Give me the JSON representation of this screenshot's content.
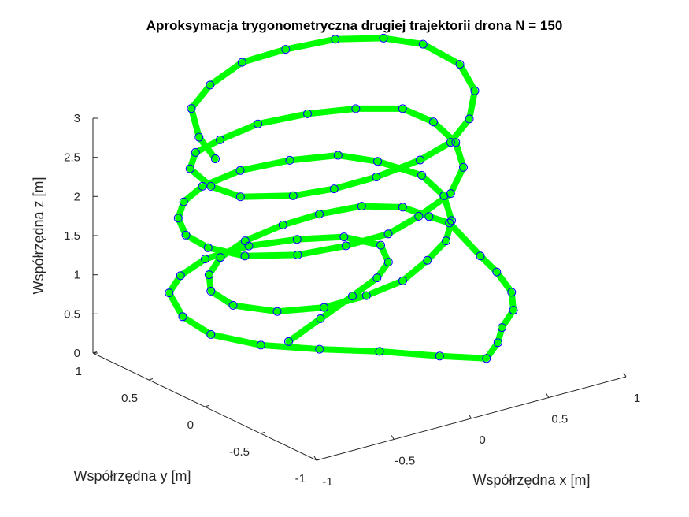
{
  "chart_data": {
    "type": "line",
    "title": "Aproksymacja trygonometryczna drugiej trajektorii drona N = 150",
    "xlabel": "Współrzędna x [m]",
    "ylabel": "Współrzędna y [m]",
    "zlabel": "Współrzędna z [m]",
    "x_ticks": [
      "-1",
      "-0.5",
      "0",
      "0.5",
      "1"
    ],
    "y_ticks": [
      "-1",
      "-0.5",
      "0",
      "0.5",
      "1"
    ],
    "z_ticks": [
      "0",
      "0.5",
      "1",
      "1.5",
      "2",
      "2.5",
      "3"
    ],
    "xlim": [
      -1,
      1
    ],
    "ylim": [
      -1,
      1
    ],
    "zlim": [
      0,
      3
    ],
    "grid": false,
    "view": "3d",
    "series": [
      {
        "style": "thick line with circle markers",
        "line_color": "#00ff00",
        "marker_color": "#0000ff",
        "points": [
          [
            -0.6,
            -0.25,
            0.5
          ],
          [
            -0.3,
            -0.15,
            0.55
          ],
          [
            0.0,
            -0.05,
            0.6
          ],
          [
            0.25,
            0.05,
            0.62
          ],
          [
            0.45,
            0.2,
            0.6
          ],
          [
            0.6,
            0.45,
            0.55
          ],
          [
            0.55,
            0.7,
            0.5
          ],
          [
            0.35,
            0.85,
            0.47
          ],
          [
            0.1,
            0.95,
            0.45
          ],
          [
            -0.2,
            0.95,
            0.45
          ],
          [
            -0.45,
            0.85,
            0.45
          ],
          [
            -0.65,
            0.7,
            0.45
          ],
          [
            -0.8,
            0.4,
            0.45
          ],
          [
            -0.85,
            0.1,
            0.47
          ],
          [
            -0.75,
            -0.2,
            0.5
          ],
          [
            -0.55,
            -0.45,
            0.52
          ],
          [
            -0.3,
            -0.65,
            0.5
          ],
          [
            -0.05,
            -0.85,
            0.45
          ],
          [
            0.15,
            -1.0,
            0.42
          ],
          [
            0.35,
            -0.85,
            0.4
          ],
          [
            0.5,
            -0.7,
            0.4
          ],
          [
            0.7,
            -0.55,
            0.4
          ],
          [
            0.85,
            -0.35,
            0.4
          ],
          [
            0.95,
            -0.1,
            0.42
          ],
          [
            1.0,
            0.1,
            0.45
          ],
          [
            0.95,
            0.3,
            0.75
          ],
          [
            0.85,
            0.35,
            0.85
          ],
          [
            0.75,
            0.45,
            0.95
          ],
          [
            0.55,
            0.55,
            1.0
          ],
          [
            0.3,
            0.6,
            1.0
          ],
          [
            0.05,
            0.6,
            1.0
          ],
          [
            -0.25,
            0.55,
            1.0
          ],
          [
            -0.5,
            0.45,
            1.0
          ],
          [
            -0.7,
            0.3,
            1.0
          ],
          [
            -0.85,
            0.1,
            1.02
          ],
          [
            -0.9,
            -0.15,
            1.05
          ],
          [
            -0.8,
            -0.4,
            1.1
          ],
          [
            -0.6,
            -0.55,
            1.15
          ],
          [
            -0.35,
            -0.6,
            1.2
          ],
          [
            -0.1,
            -0.6,
            1.25
          ],
          [
            0.15,
            -0.5,
            1.3
          ],
          [
            0.4,
            -0.35,
            1.3
          ],
          [
            0.6,
            -0.15,
            1.3
          ],
          [
            0.75,
            0.1,
            1.35
          ],
          [
            0.8,
            0.35,
            1.4
          ],
          [
            0.7,
            0.6,
            1.45
          ],
          [
            0.55,
            0.75,
            1.5
          ],
          [
            0.3,
            0.85,
            1.5
          ],
          [
            0.0,
            0.9,
            1.5
          ],
          [
            -0.3,
            0.85,
            1.5
          ],
          [
            -0.55,
            0.7,
            1.55
          ],
          [
            -0.75,
            0.5,
            1.6
          ],
          [
            -0.9,
            0.25,
            1.65
          ],
          [
            -0.95,
            0.0,
            1.7
          ],
          [
            -0.9,
            -0.25,
            1.75
          ],
          [
            -0.7,
            -0.45,
            1.8
          ],
          [
            -0.45,
            -0.55,
            1.85
          ],
          [
            -0.2,
            -0.6,
            1.9
          ],
          [
            0.05,
            -0.55,
            1.95
          ],
          [
            0.35,
            -0.45,
            2.0
          ],
          [
            0.6,
            -0.25,
            2.05
          ],
          [
            0.75,
            0.0,
            2.1
          ],
          [
            0.8,
            0.25,
            2.15
          ],
          [
            0.75,
            0.45,
            2.2
          ],
          [
            0.55,
            0.6,
            2.2
          ],
          [
            0.3,
            0.7,
            2.2
          ],
          [
            0.0,
            0.75,
            2.2
          ],
          [
            -0.3,
            0.7,
            2.2
          ],
          [
            -0.55,
            0.6,
            2.25
          ],
          [
            -0.75,
            0.4,
            2.3
          ],
          [
            -0.85,
            0.1,
            2.35
          ],
          [
            -0.85,
            -0.15,
            2.4
          ],
          [
            -0.65,
            -0.35,
            2.45
          ],
          [
            -0.45,
            -0.45,
            2.5
          ],
          [
            -0.2,
            -0.5,
            2.55
          ],
          [
            0.1,
            -0.5,
            2.6
          ],
          [
            0.35,
            -0.45,
            2.65
          ],
          [
            0.6,
            -0.3,
            2.7
          ],
          [
            0.8,
            -0.1,
            2.8
          ],
          [
            0.9,
            0.15,
            2.9
          ],
          [
            0.85,
            0.4,
            3.0
          ],
          [
            0.7,
            0.55,
            3.05
          ],
          [
            0.45,
            0.65,
            3.1
          ],
          [
            0.15,
            0.7,
            3.1
          ],
          [
            -0.15,
            0.7,
            3.1
          ],
          [
            -0.45,
            0.6,
            3.05
          ],
          [
            -0.7,
            0.45,
            3.0
          ],
          [
            -0.85,
            0.2,
            2.9
          ],
          [
            -0.9,
            0.0,
            2.8
          ]
        ]
      }
    ]
  }
}
